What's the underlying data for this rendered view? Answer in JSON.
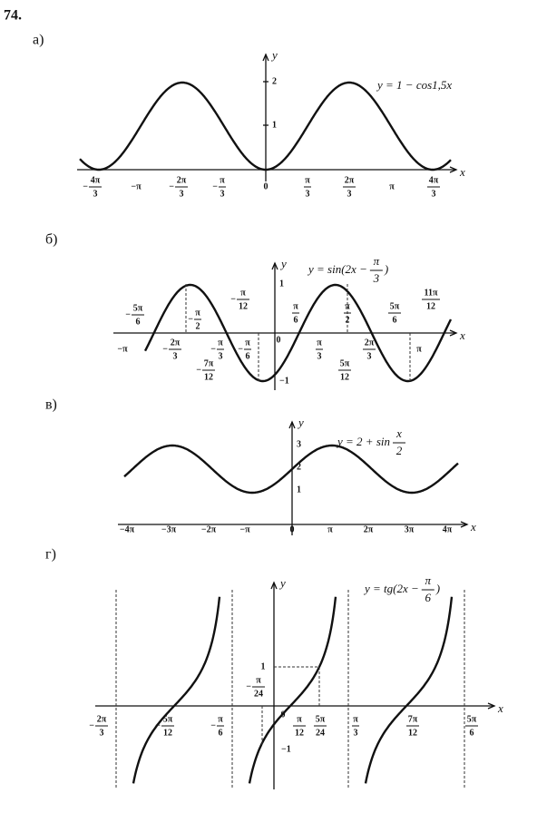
{
  "problem_number": "74.",
  "parts": [
    {
      "label": "а)",
      "formula": {
        "text": "y = 1 − cos1,5x"
      },
      "axis_x": "x",
      "axis_y": "y",
      "x_labels": [
        {
          "sign": "−",
          "num": "4π",
          "den": "3"
        },
        "−π",
        {
          "sign": "−",
          "num": "2π",
          "den": "3"
        },
        {
          "sign": "−",
          "num": "π",
          "den": "3"
        },
        "0",
        {
          "num": "π",
          "den": "3"
        },
        {
          "num": "2π",
          "den": "3"
        },
        "π",
        {
          "num": "4π",
          "den": "3"
        }
      ],
      "y_labels": [
        "2",
        "1"
      ]
    },
    {
      "label": "б)",
      "formula": {
        "text": "y = sin(2x −",
        "frac": {
          "num": "π",
          "den": "3"
        },
        "close": ")"
      },
      "axis_x": "x",
      "axis_y": "y",
      "x_labels": [
        {
          "sign": "−",
          "num": "5π",
          "den": "6"
        },
        {
          "sign": "−",
          "num": "π",
          "den": "2"
        },
        {
          "sign": "−",
          "num": "π",
          "den": "12"
        },
        {
          "num": "π",
          "den": "6"
        },
        {
          "num": "π",
          "den": "2"
        },
        {
          "num": "5π",
          "den": "6"
        },
        {
          "num": "11π",
          "den": "12"
        },
        "−π",
        {
          "sign": "−",
          "num": "2π",
          "den": "3"
        },
        {
          "sign": "−",
          "num": "7π",
          "den": "12"
        },
        {
          "sign": "−",
          "num": "π",
          "den": "3"
        },
        {
          "sign": "−",
          "num": "π",
          "den": "6"
        },
        "0",
        {
          "num": "π",
          "den": "3"
        },
        {
          "num": "5π",
          "den": "12"
        },
        {
          "num": "2π",
          "den": "3"
        },
        "π"
      ],
      "y_labels": [
        "1",
        "−1"
      ]
    },
    {
      "label": "в)",
      "formula": {
        "text": "y = 2 + sin",
        "frac": {
          "num": "x",
          "den": "2"
        }
      },
      "axis_x": "x",
      "axis_y": "y",
      "x_labels": [
        "−4π",
        "−3π",
        "−2π",
        "−π",
        "0",
        "π",
        "2π",
        "3π",
        "4π"
      ],
      "y_labels": [
        "3",
        "2",
        "1"
      ]
    },
    {
      "label": "г)",
      "formula": {
        "text": "y = tg(2x −",
        "frac": {
          "num": "π",
          "den": "6"
        },
        "close": ")"
      },
      "axis_x": "x",
      "axis_y": "y",
      "x_labels": [
        {
          "sign": "−",
          "num": "2π",
          "den": "3"
        },
        {
          "sign": "−",
          "num": "5π",
          "den": "12"
        },
        {
          "sign": "−",
          "num": "π",
          "den": "6"
        },
        "0",
        {
          "num": "π",
          "den": "12"
        },
        {
          "num": "5π",
          "den": "24"
        },
        {
          "num": "π",
          "den": "3"
        },
        {
          "num": "7π",
          "den": "12"
        },
        {
          "num": "5π",
          "den": "6"
        }
      ],
      "y_labels": [
        "1",
        "−1",
        {
          "sign": "−",
          "num": "π",
          "den": "24"
        }
      ]
    }
  ]
}
